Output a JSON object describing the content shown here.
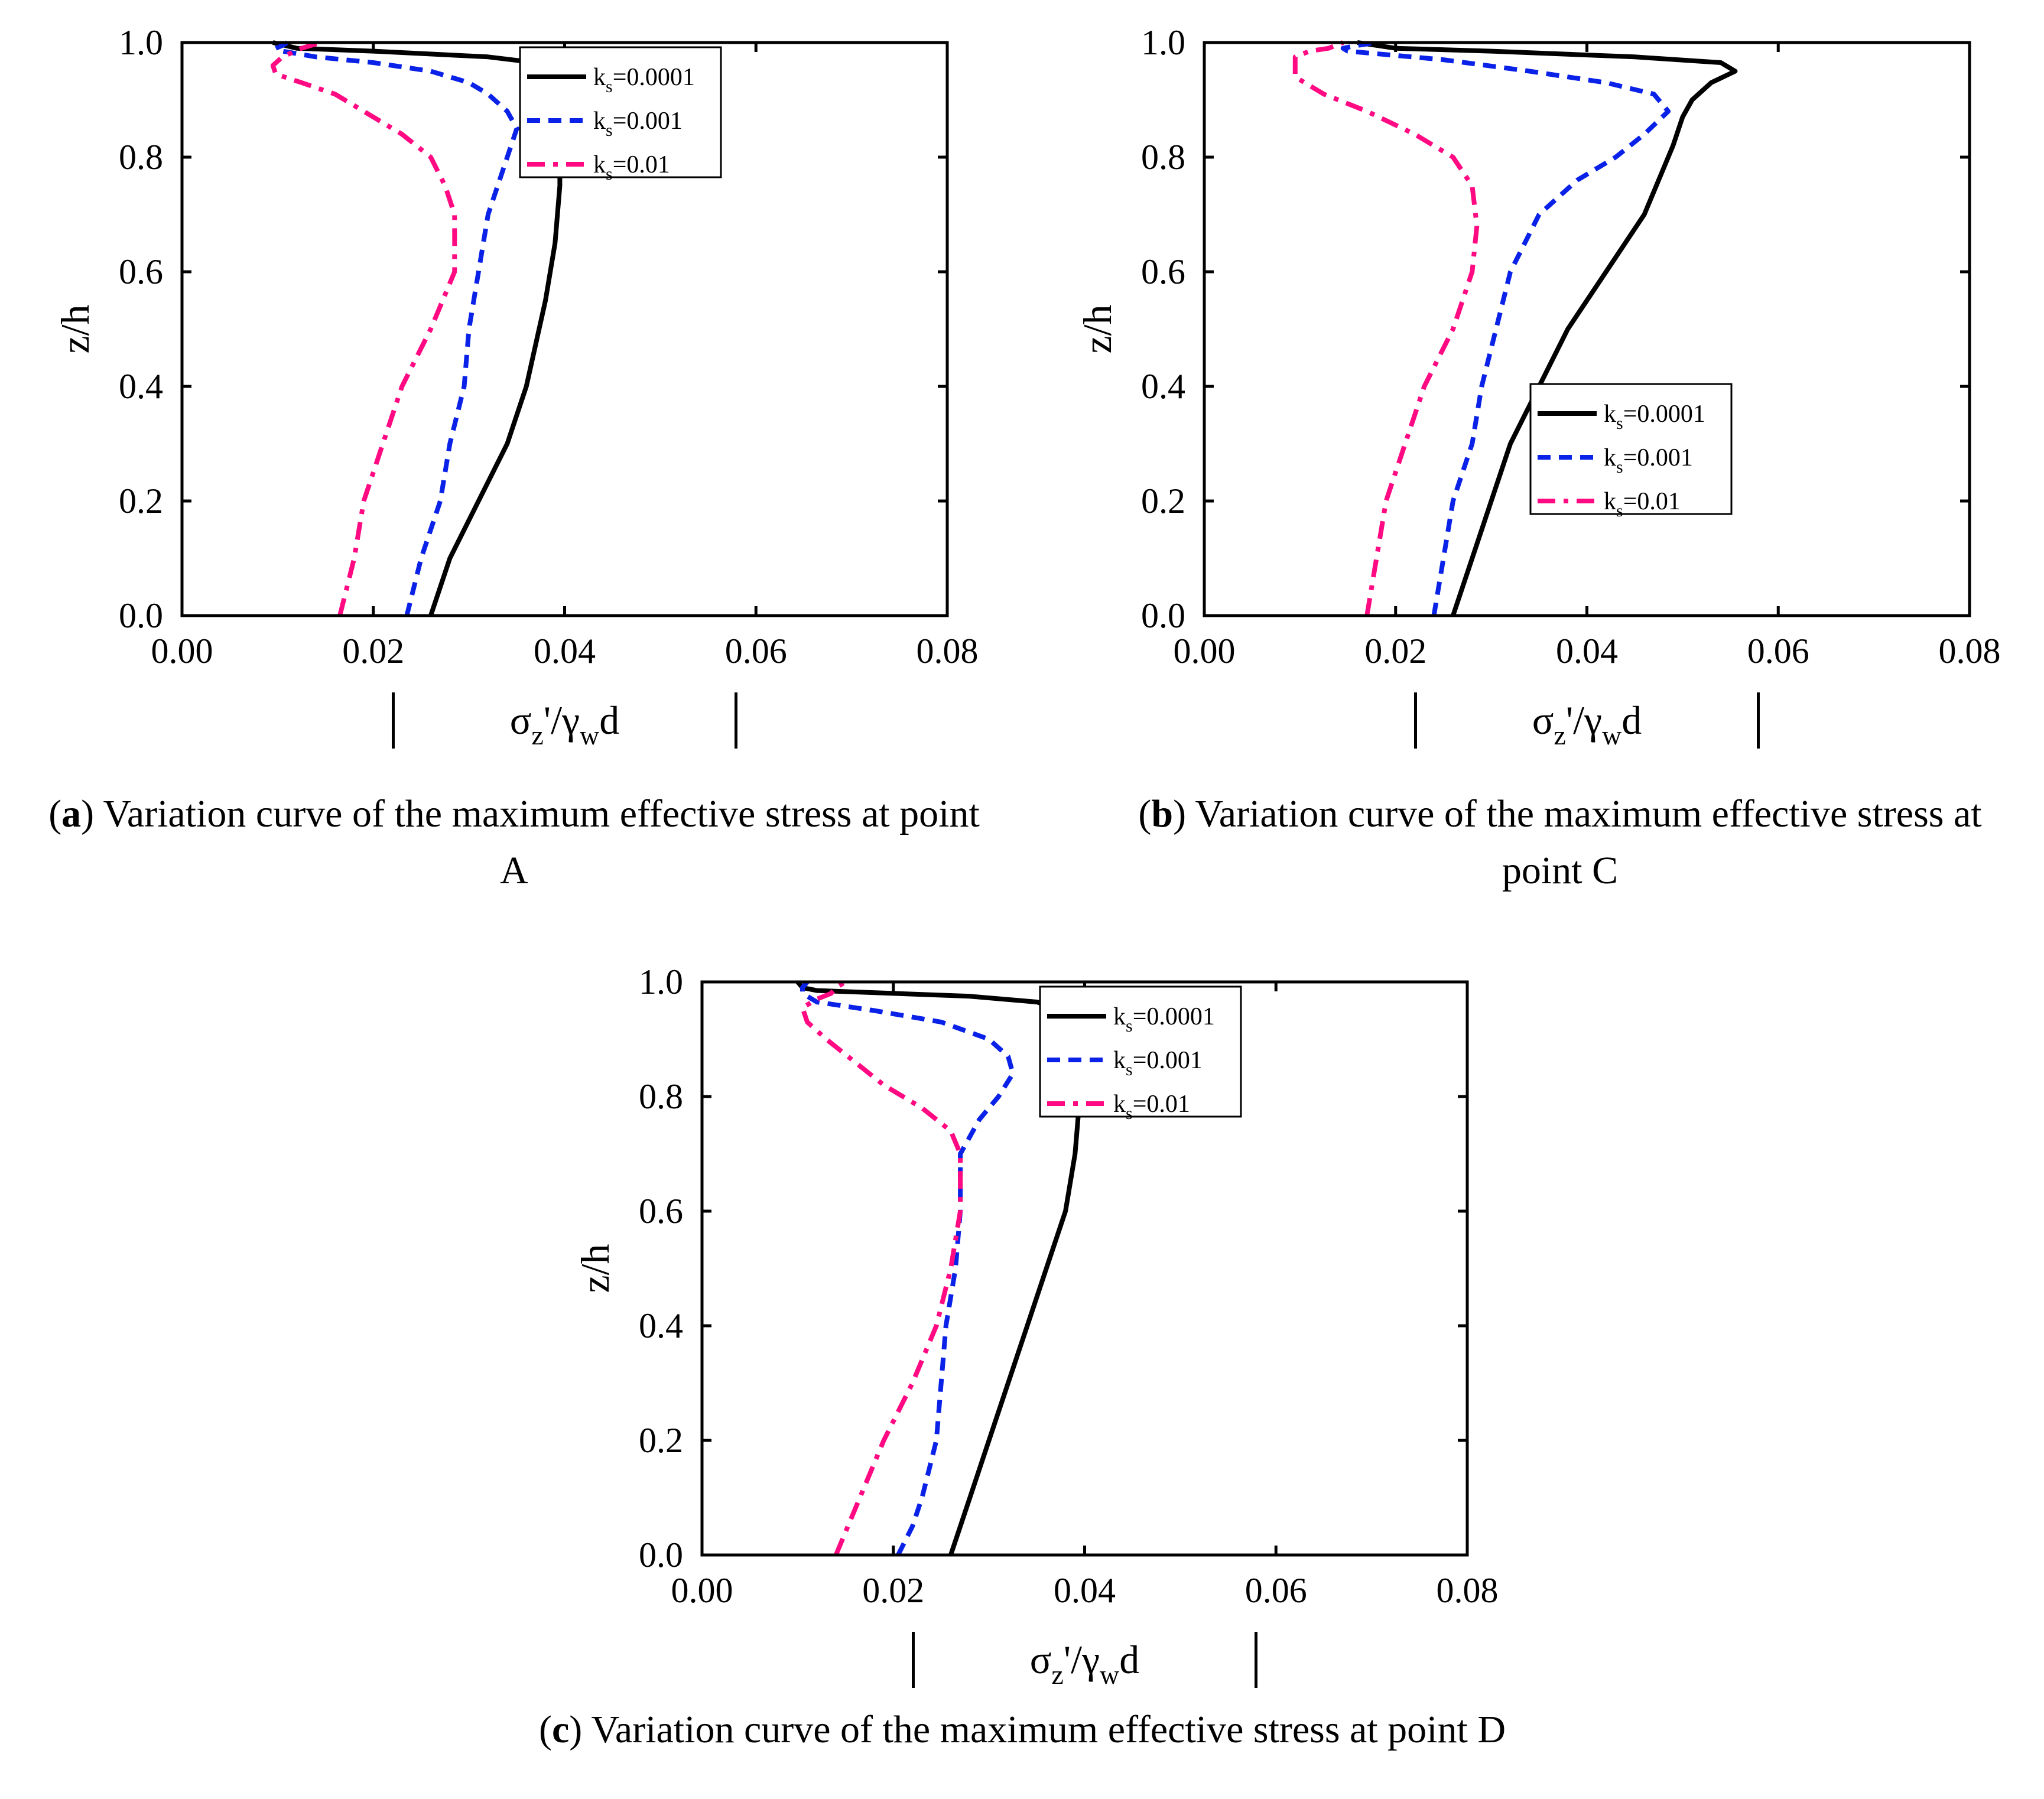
{
  "panels": [
    {
      "caption_letter": "a",
      "caption_text": "Variation curve of the maximum effective stress at point A",
      "chart_data": {
        "type": "line",
        "title": "",
        "xlabel_main": "σ",
        "xlabel_sub1": "z",
        "xlabel_mid": "'/γ",
        "xlabel_sub2": "w",
        "xlabel_end": "d",
        "ylabel": "z/h",
        "xlim": [
          0,
          0.08
        ],
        "ylim": [
          0,
          1.0
        ],
        "xticks": [
          "0.00",
          "0.02",
          "0.04",
          "0.06",
          "0.08"
        ],
        "yticks": [
          "0.0",
          "0.2",
          "0.4",
          "0.6",
          "0.8",
          "1.0"
        ],
        "legend_position": "top-right",
        "series": [
          {
            "name": "k",
            "sub": "s",
            "value": "=0.0001",
            "color": "#000000",
            "dash": "solid",
            "points": [
              [
                0.026,
                0
              ],
              [
                0.028,
                0.1
              ],
              [
                0.031,
                0.2
              ],
              [
                0.034,
                0.3
              ],
              [
                0.036,
                0.4
              ],
              [
                0.038,
                0.55
              ],
              [
                0.039,
                0.65
              ],
              [
                0.0395,
                0.75
              ],
              [
                0.0395,
                0.8
              ],
              [
                0.039,
                0.85
              ],
              [
                0.039,
                0.9
              ],
              [
                0.0395,
                0.93
              ],
              [
                0.039,
                0.95
              ],
              [
                0.037,
                0.965
              ],
              [
                0.032,
                0.975
              ],
              [
                0.02,
                0.985
              ],
              [
                0.012,
                0.99
              ],
              [
                0.0095,
                1.0
              ]
            ]
          },
          {
            "name": "k",
            "sub": "s",
            "value": "=0.001",
            "color": "#0a22e8",
            "dash": "dash",
            "points": [
              [
                0.0235,
                0
              ],
              [
                0.025,
                0.1
              ],
              [
                0.027,
                0.2
              ],
              [
                0.028,
                0.3
              ],
              [
                0.0295,
                0.4
              ],
              [
                0.03,
                0.5
              ],
              [
                0.031,
                0.6
              ],
              [
                0.032,
                0.7
              ],
              [
                0.034,
                0.8
              ],
              [
                0.035,
                0.85
              ],
              [
                0.034,
                0.88
              ],
              [
                0.032,
                0.91
              ],
              [
                0.03,
                0.93
              ],
              [
                0.026,
                0.95
              ],
              [
                0.02,
                0.965
              ],
              [
                0.014,
                0.975
              ],
              [
                0.0105,
                0.985
              ],
              [
                0.0098,
                0.99
              ],
              [
                0.0105,
                0.995
              ],
              [
                0.011,
                1.0
              ]
            ]
          },
          {
            "name": "k",
            "sub": "s",
            "value": "=0.01",
            "color": "#ff0a82",
            "dash": "dashdot",
            "points": [
              [
                0.0165,
                0
              ],
              [
                0.018,
                0.1
              ],
              [
                0.019,
                0.2
              ],
              [
                0.021,
                0.3
              ],
              [
                0.023,
                0.4
              ],
              [
                0.026,
                0.5
              ],
              [
                0.0285,
                0.6
              ],
              [
                0.0285,
                0.7
              ],
              [
                0.0275,
                0.75
              ],
              [
                0.026,
                0.8
              ],
              [
                0.023,
                0.84
              ],
              [
                0.019,
                0.88
              ],
              [
                0.016,
                0.91
              ],
              [
                0.0125,
                0.93
              ],
              [
                0.0098,
                0.945
              ],
              [
                0.0095,
                0.96
              ],
              [
                0.0105,
                0.975
              ],
              [
                0.0125,
                0.99
              ],
              [
                0.0145,
                1.0
              ]
            ]
          }
        ]
      }
    },
    {
      "caption_letter": "b",
      "caption_text": "Variation curve of the maximum effective stress at point C",
      "chart_data": {
        "type": "line",
        "title": "",
        "xlabel_main": "σ",
        "xlabel_sub1": "z",
        "xlabel_mid": "'/γ",
        "xlabel_sub2": "w",
        "xlabel_end": "d",
        "ylabel": "z/h",
        "xlim": [
          0,
          0.08
        ],
        "ylim": [
          0,
          1.0
        ],
        "xticks": [
          "0.00",
          "0.02",
          "0.04",
          "0.06",
          "0.08"
        ],
        "yticks": [
          "0.0",
          "0.2",
          "0.4",
          "0.6",
          "0.8",
          "1.0"
        ],
        "legend_position": "middle-right",
        "series": [
          {
            "name": "k",
            "sub": "s",
            "value": "=0.0001",
            "color": "#000000",
            "dash": "solid",
            "points": [
              [
                0.026,
                0
              ],
              [
                0.028,
                0.1
              ],
              [
                0.03,
                0.2
              ],
              [
                0.032,
                0.3
              ],
              [
                0.035,
                0.4
              ],
              [
                0.038,
                0.5
              ],
              [
                0.042,
                0.6
              ],
              [
                0.046,
                0.7
              ],
              [
                0.048,
                0.78
              ],
              [
                0.049,
                0.82
              ],
              [
                0.05,
                0.87
              ],
              [
                0.051,
                0.9
              ],
              [
                0.053,
                0.93
              ],
              [
                0.0555,
                0.95
              ],
              [
                0.054,
                0.965
              ],
              [
                0.045,
                0.975
              ],
              [
                0.03,
                0.985
              ],
              [
                0.02,
                0.99
              ],
              [
                0.016,
                1.0
              ]
            ]
          },
          {
            "name": "k",
            "sub": "s",
            "value": "=0.001",
            "color": "#0a22e8",
            "dash": "dash",
            "points": [
              [
                0.024,
                0
              ],
              [
                0.025,
                0.1
              ],
              [
                0.026,
                0.2
              ],
              [
                0.028,
                0.3
              ],
              [
                0.029,
                0.4
              ],
              [
                0.0305,
                0.5
              ],
              [
                0.032,
                0.6
              ],
              [
                0.035,
                0.7
              ],
              [
                0.039,
                0.76
              ],
              [
                0.043,
                0.8
              ],
              [
                0.046,
                0.84
              ],
              [
                0.0485,
                0.88
              ],
              [
                0.047,
                0.91
              ],
              [
                0.042,
                0.93
              ],
              [
                0.034,
                0.95
              ],
              [
                0.025,
                0.97
              ],
              [
                0.015,
                0.985
              ],
              [
                0.0145,
                0.99
              ],
              [
                0.016,
                0.995
              ],
              [
                0.018,
                1.0
              ]
            ]
          },
          {
            "name": "k",
            "sub": "s",
            "value": "=0.01",
            "color": "#ff0a82",
            "dash": "dashdot",
            "points": [
              [
                0.017,
                0
              ],
              [
                0.018,
                0.1
              ],
              [
                0.019,
                0.2
              ],
              [
                0.021,
                0.3
              ],
              [
                0.023,
                0.4
              ],
              [
                0.026,
                0.5
              ],
              [
                0.028,
                0.6
              ],
              [
                0.0285,
                0.68
              ],
              [
                0.028,
                0.75
              ],
              [
                0.026,
                0.8
              ],
              [
                0.022,
                0.84
              ],
              [
                0.017,
                0.88
              ],
              [
                0.0125,
                0.91
              ],
              [
                0.0095,
                0.94
              ],
              [
                0.0095,
                0.96
              ],
              [
                0.0095,
                0.975
              ],
              [
                0.011,
                0.985
              ],
              [
                0.013,
                0.99
              ],
              [
                0.0145,
                1.0
              ]
            ]
          }
        ]
      }
    },
    {
      "caption_letter": "c",
      "caption_text": "Variation curve of the maximum effective stress at point D",
      "chart_data": {
        "type": "line",
        "title": "",
        "xlabel_main": "σ",
        "xlabel_sub1": "z",
        "xlabel_mid": "'/γ",
        "xlabel_sub2": "w",
        "xlabel_end": "d",
        "ylabel": "z/h",
        "xlim": [
          0,
          0.08
        ],
        "ylim": [
          0,
          1.0
        ],
        "xticks": [
          "0.00",
          "0.02",
          "0.04",
          "0.06",
          "0.08"
        ],
        "yticks": [
          "0.0",
          "0.2",
          "0.4",
          "0.6",
          "0.8",
          "1.0"
        ],
        "legend_position": "top-right",
        "series": [
          {
            "name": "k",
            "sub": "s",
            "value": "=0.0001",
            "color": "#000000",
            "dash": "solid",
            "points": [
              [
                0.026,
                0
              ],
              [
                0.028,
                0.1
              ],
              [
                0.03,
                0.2
              ],
              [
                0.032,
                0.3
              ],
              [
                0.034,
                0.4
              ],
              [
                0.036,
                0.5
              ],
              [
                0.038,
                0.6
              ],
              [
                0.039,
                0.7
              ],
              [
                0.0395,
                0.8
              ],
              [
                0.039,
                0.85
              ],
              [
                0.0385,
                0.9
              ],
              [
                0.039,
                0.93
              ],
              [
                0.038,
                0.95
              ],
              [
                0.035,
                0.965
              ],
              [
                0.028,
                0.975
              ],
              [
                0.02,
                0.98
              ],
              [
                0.012,
                0.985
              ],
              [
                0.0105,
                0.99
              ],
              [
                0.01,
                1.0
              ]
            ]
          },
          {
            "name": "k",
            "sub": "s",
            "value": "=0.001",
            "color": "#0a22e8",
            "dash": "dash",
            "points": [
              [
                0.0205,
                0
              ],
              [
                0.022,
                0.05
              ],
              [
                0.023,
                0.1
              ],
              [
                0.0245,
                0.2
              ],
              [
                0.025,
                0.3
              ],
              [
                0.0255,
                0.4
              ],
              [
                0.0265,
                0.5
              ],
              [
                0.027,
                0.6
              ],
              [
                0.027,
                0.7
              ],
              [
                0.029,
                0.76
              ],
              [
                0.031,
                0.8
              ],
              [
                0.0325,
                0.84
              ],
              [
                0.032,
                0.87
              ],
              [
                0.03,
                0.9
              ],
              [
                0.025,
                0.93
              ],
              [
                0.018,
                0.95
              ],
              [
                0.012,
                0.965
              ],
              [
                0.0105,
                0.98
              ],
              [
                0.0105,
                0.99
              ],
              [
                0.011,
                1.0
              ]
            ]
          },
          {
            "name": "k",
            "sub": "s",
            "value": "=0.01",
            "color": "#ff0a82",
            "dash": "dashdot",
            "points": [
              [
                0.014,
                0
              ],
              [
                0.0165,
                0.1
              ],
              [
                0.019,
                0.2
              ],
              [
                0.022,
                0.3
              ],
              [
                0.0245,
                0.4
              ],
              [
                0.026,
                0.5
              ],
              [
                0.027,
                0.6
              ],
              [
                0.027,
                0.7
              ],
              [
                0.026,
                0.74
              ],
              [
                0.023,
                0.78
              ],
              [
                0.019,
                0.82
              ],
              [
                0.016,
                0.86
              ],
              [
                0.013,
                0.9
              ],
              [
                0.011,
                0.93
              ],
              [
                0.0105,
                0.955
              ],
              [
                0.012,
                0.97
              ],
              [
                0.0135,
                0.98
              ],
              [
                0.014,
                0.99
              ],
              [
                0.015,
                1.0
              ]
            ]
          }
        ]
      }
    }
  ]
}
